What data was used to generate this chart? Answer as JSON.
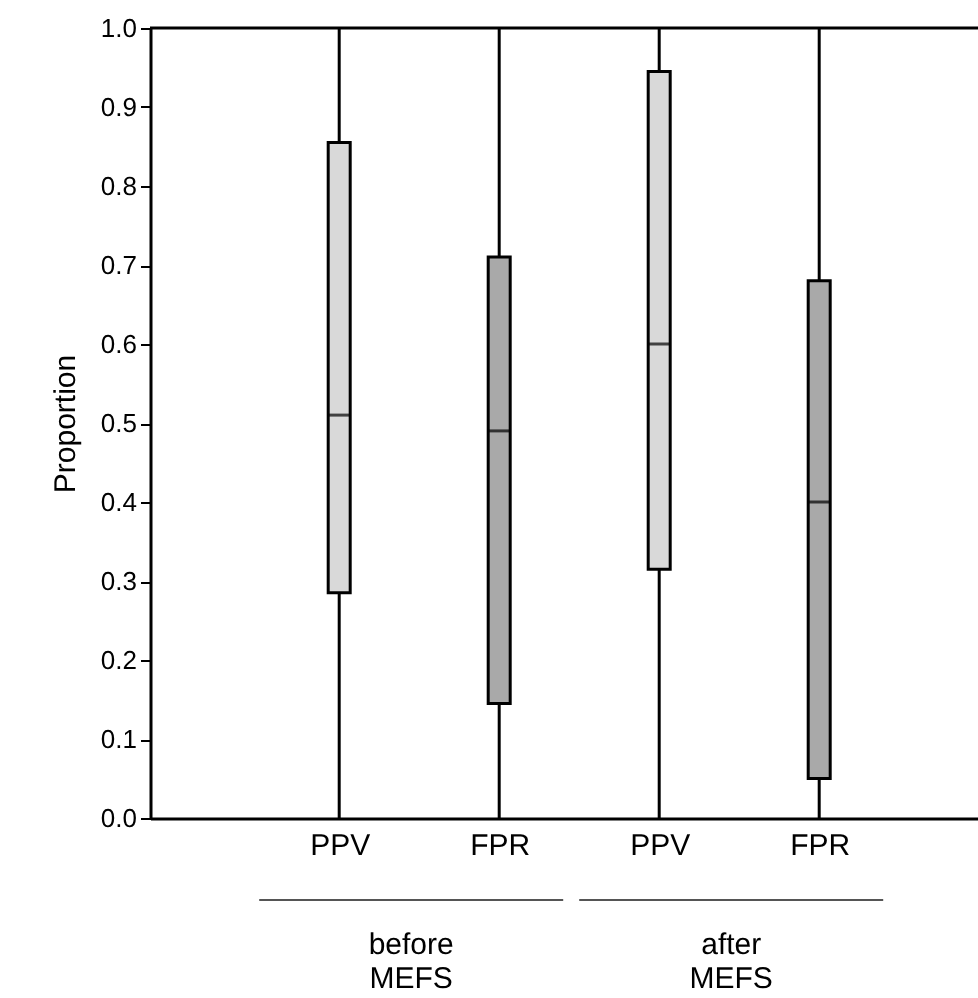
{
  "chart_data": {
    "type": "box",
    "ylabel": "Proportion",
    "categories": [
      "PPV",
      "FPR",
      "PPV",
      "FPR"
    ],
    "boxes": [
      {
        "low": 0,
        "q1": 0.285,
        "median": 0.51,
        "q3": 0.855,
        "high": 1.0
      },
      {
        "low": 0,
        "q1": 0.145,
        "median": 0.49,
        "q3": 0.71,
        "high": 1.0
      },
      {
        "low": 0,
        "q1": 0.315,
        "median": 0.6,
        "q3": 0.945,
        "high": 1.0
      },
      {
        "low": 0,
        "q1": 0.05,
        "median": 0.4,
        "q3": 0.68,
        "high": 1.0
      }
    ],
    "colors": [
      "#d9d9d9",
      "#a9a9a9",
      "#d9d9d9",
      "#a9a9a9"
    ],
    "ylim": [
      0,
      1
    ],
    "yticks": [
      {
        "value": 0,
        "label": "0.0"
      },
      0.1,
      0.2,
      0.3,
      0.4,
      0.5,
      0.6,
      0.7,
      0.8,
      0.9,
      {
        "value": 1,
        "label": "1.0"
      }
    ],
    "annotations": [
      "before MEFS",
      "after MEFS"
    ],
    "grid": false
  }
}
